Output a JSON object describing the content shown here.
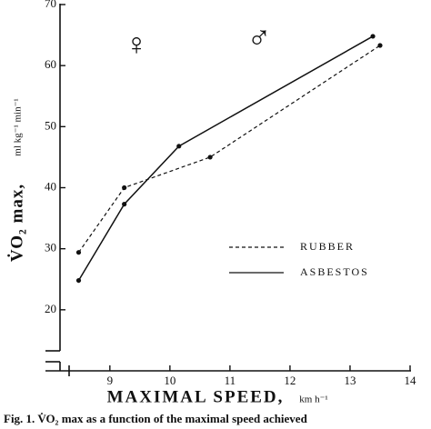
{
  "chart_data": {
    "type": "line",
    "y_label": "V̇O₂ max,",
    "y_label_units": "ml kg⁻¹ min⁻¹",
    "x_label": "MAXIMAL SPEED,",
    "x_label_units": "km h⁻¹",
    "annotations": [
      "♀",
      "♂"
    ],
    "caption": "Fig. 1. V̇O₂ max as a function of the maximal speed achieved",
    "xlim": [
      8.2,
      14
    ],
    "xticks": [
      9,
      10,
      11,
      12,
      13,
      14
    ],
    "ylim": [
      10,
      70
    ],
    "yticks": [
      20,
      30,
      40,
      50,
      60,
      70
    ],
    "series": [
      {
        "name": "RUBBER",
        "color": "#111111",
        "dash": true,
        "x": [
          8.48,
          9.24,
          10.67,
          13.5
        ],
        "values": [
          29.4,
          40.0,
          45.0,
          63.3
        ]
      },
      {
        "name": "ASBESTOS",
        "color": "#111111",
        "dash": false,
        "x": [
          8.48,
          9.24,
          10.15,
          13.38
        ],
        "values": [
          24.8,
          37.3,
          46.8,
          64.8
        ]
      }
    ]
  }
}
